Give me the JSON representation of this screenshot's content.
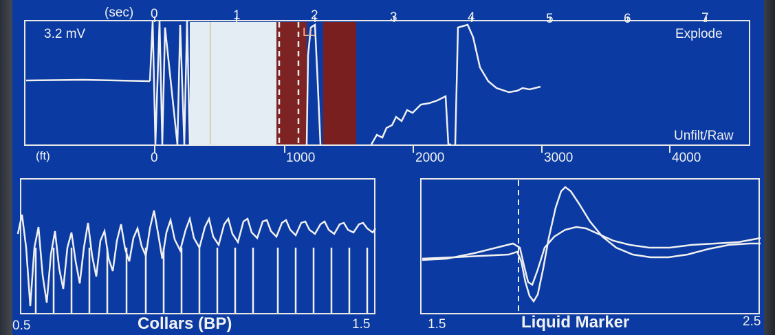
{
  "top_panel": {
    "time_axis_label": "(sec)",
    "time_ticks": [
      "0",
      "1",
      "2",
      "3",
      "4",
      "5",
      "6",
      "7"
    ],
    "depth_axis_label": "(ft)",
    "depth_ticks": [
      "0",
      "1000",
      "2000",
      "3000",
      "4000"
    ],
    "amplitude_label": "3.2 mV",
    "mode_label": "Explode",
    "filter_label": "Unfilt/Raw",
    "marker_label": "LL"
  },
  "collars_panel": {
    "title": "Collars (BP)",
    "x_start": "0.5",
    "x_end": "1.5"
  },
  "liquid_panel": {
    "title": "Liquid Marker",
    "x_start": "1.5",
    "x_end": "2.5"
  },
  "colors": {
    "background": "#0a3aa2",
    "trace": "#f0f0f0",
    "fill_light": "#e6eef4",
    "fill_dark": "#7a1f1f"
  }
}
